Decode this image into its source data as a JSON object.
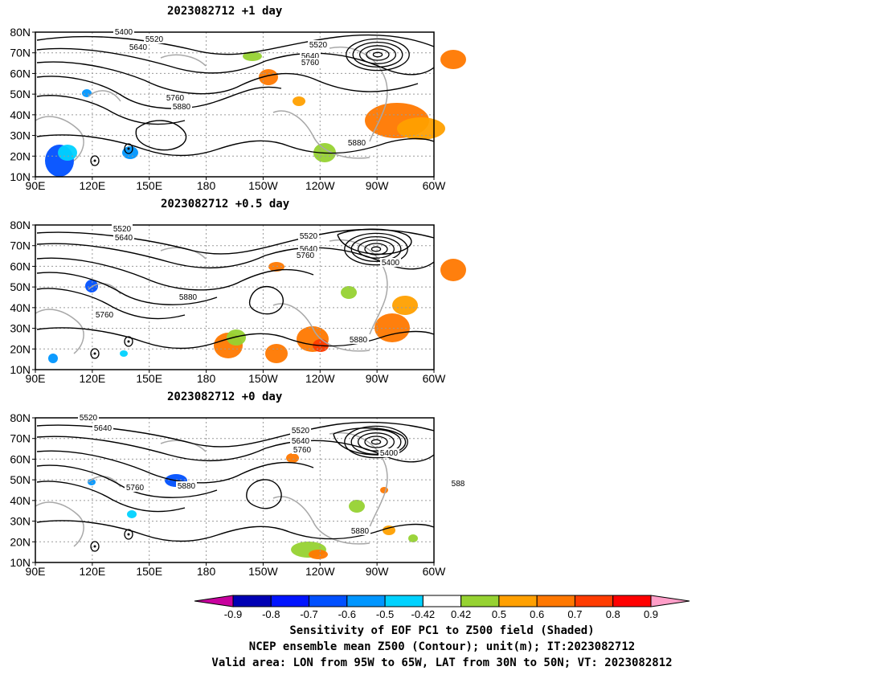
{
  "panels": [
    {
      "title": "2023082712  +1 day"
    },
    {
      "title": "2023082712  +0.5 day"
    },
    {
      "title": "2023082712  +0 day"
    }
  ],
  "lat_ticks": [
    "80N",
    "70N",
    "60N",
    "50N",
    "40N",
    "30N",
    "20N",
    "10N"
  ],
  "lon_ticks": [
    "90E",
    "120E",
    "150E",
    "180",
    "150W",
    "120W",
    "90W",
    "60W"
  ],
  "contour_labels": {
    "p0": [
      "5400",
      "5520",
      "5640",
      "5520",
      "5640",
      "5760",
      "5760",
      "5880",
      "5880"
    ],
    "p1": [
      "5520",
      "5640",
      "5520",
      "5640",
      "5760",
      "5400",
      "5880",
      "5760",
      "5880"
    ],
    "p2": [
      "5520",
      "5640",
      "5520",
      "5640",
      "5760",
      "5400",
      "5760",
      "5880",
      "5880",
      "588"
    ]
  },
  "colorbar": {
    "tick_labels": [
      "-0.9",
      "-0.8",
      "-0.7",
      "-0.6",
      "-0.5",
      "-0.42",
      "0.42",
      "0.5",
      "0.6",
      "0.7",
      "0.8",
      "0.9"
    ],
    "colors": [
      "#0000b4",
      "#0014ff",
      "#0050ff",
      "#0096ff",
      "#00d2ff",
      "#ffffff",
      "#96d232",
      "#ffa000",
      "#ff7800",
      "#ff3c00",
      "#ff0000"
    ],
    "low_color": "#c8009e",
    "high_color": "#ff9ec8"
  },
  "caption": {
    "line1": "Sensitivity of EOF PC1 to Z500 field (Shaded)",
    "line2": "NCEP ensemble mean Z500 (Contour); unit(m); IT:2023082712",
    "line3": "Valid area: LON from 95W to 65W, LAT from 30N to 50N; VT: 2023082812"
  }
}
